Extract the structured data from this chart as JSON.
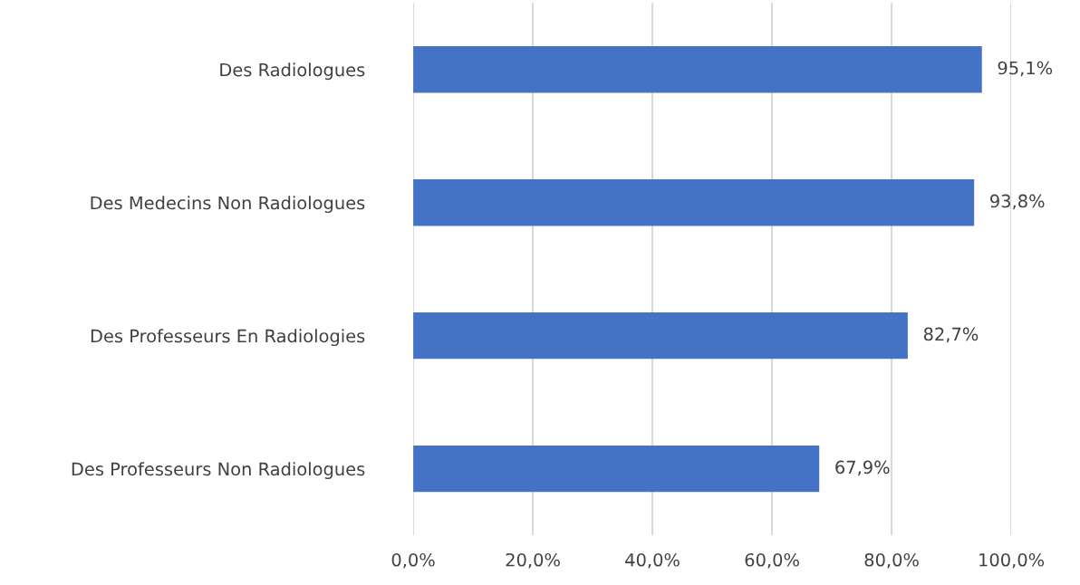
{
  "chart_data": {
    "type": "bar",
    "orientation": "horizontal",
    "categories": [
      "Des Radiologues",
      "Des Medecins Non Radiologues",
      "Des Professeurs En Radiologies",
      "Des Professeurs Non Radiologues"
    ],
    "values": [
      95.1,
      93.8,
      82.7,
      67.9
    ],
    "value_labels": [
      "95,1%",
      "93,8%",
      "82,7%",
      "67,9%"
    ],
    "color": "#4472c4",
    "xlim": [
      0,
      100
    ],
    "xticks": [
      {
        "value": 0,
        "label": "0,0%"
      },
      {
        "value": 20,
        "label": "20,0%"
      },
      {
        "value": 40,
        "label": "40,0%"
      },
      {
        "value": 60,
        "label": "60,0%"
      },
      {
        "value": 80,
        "label": "80,0%"
      },
      {
        "value": 100,
        "label": "100,0%"
      }
    ],
    "grid": "x",
    "legend": false
  }
}
